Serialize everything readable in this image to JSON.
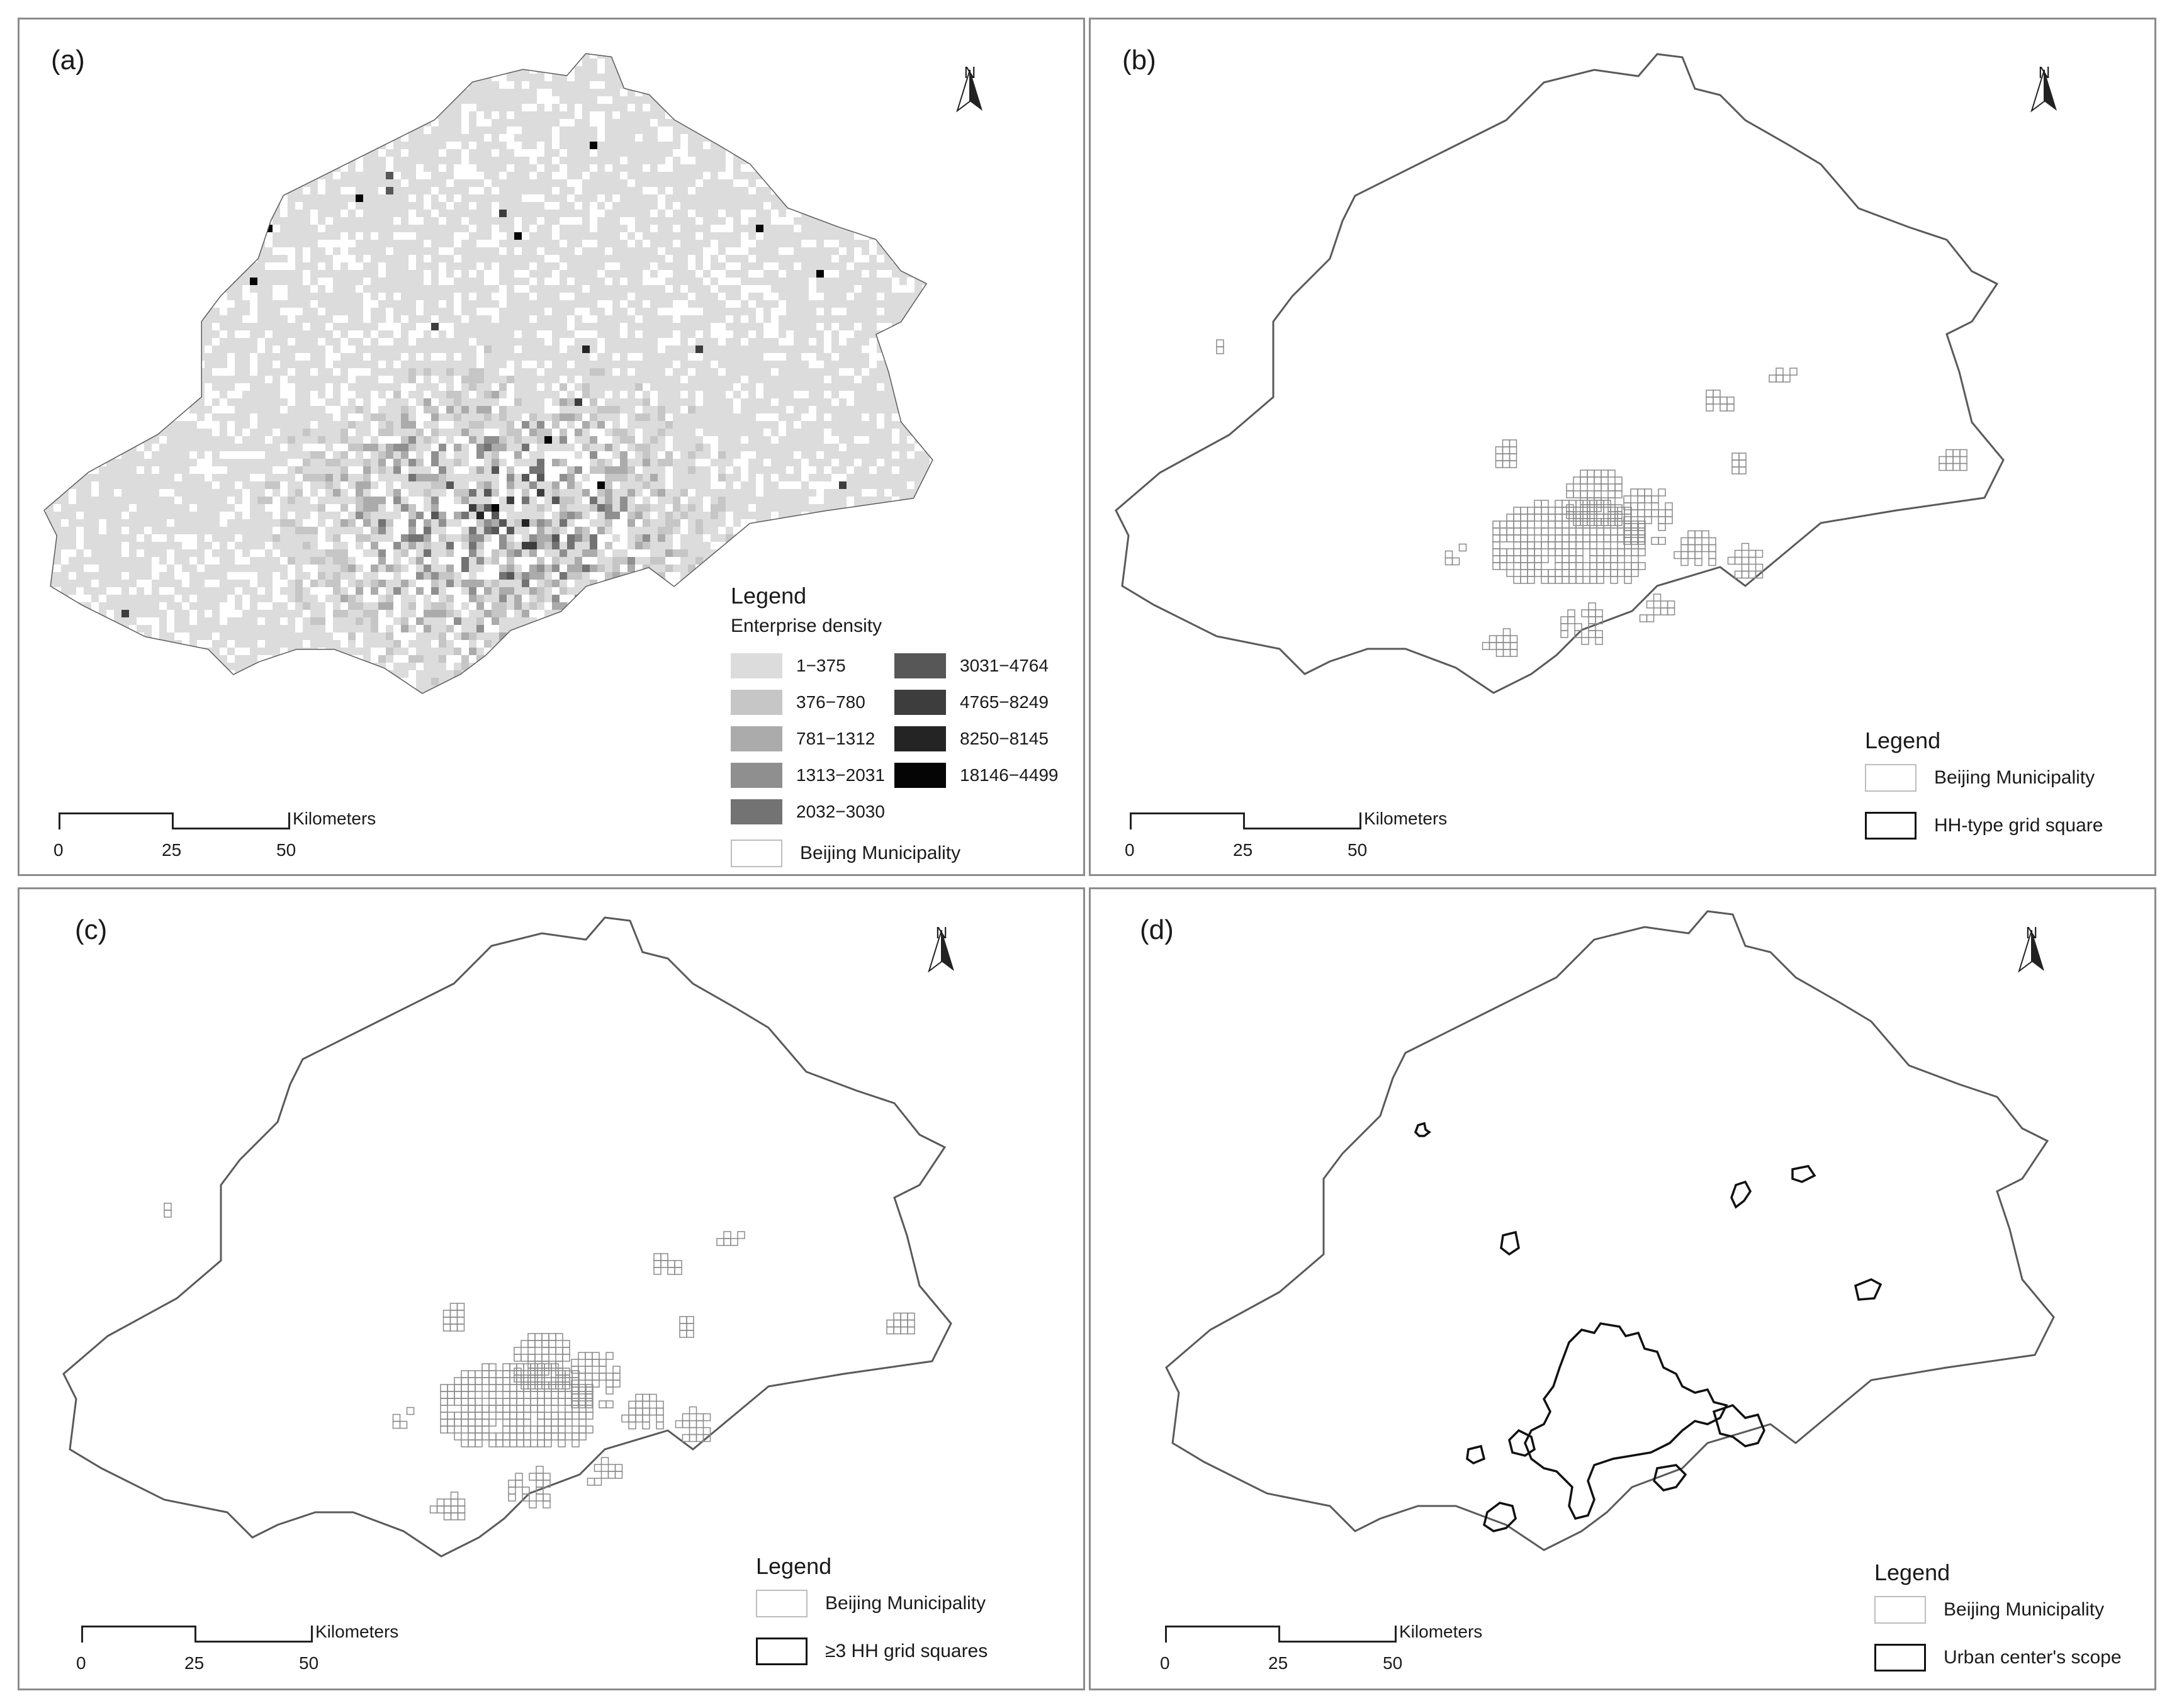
{
  "panels": [
    {
      "label": "(a)",
      "north": "N",
      "legend": {
        "title": "Legend",
        "subtitle": "Enterprise density",
        "density_classes": [
          {
            "range": "1−375",
            "color": "#dcdcdc"
          },
          {
            "range": "376−780",
            "color": "#c6c6c6"
          },
          {
            "range": "781−1312",
            "color": "#ababab"
          },
          {
            "range": "1313−2031",
            "color": "#8f8f8f"
          },
          {
            "range": "2032−3030",
            "color": "#737373"
          },
          {
            "range": "3031−4764",
            "color": "#575757"
          },
          {
            "range": "4765−8249",
            "color": "#3d3d3d"
          },
          {
            "range": "8250−8145",
            "color": "#242424"
          },
          {
            "range": "18146−4499",
            "color": "#050505"
          }
        ],
        "boundary_label": "Beijing Municipality"
      },
      "scale": {
        "unit": "Kilometers",
        "ticks": [
          "0",
          "25",
          "50"
        ]
      }
    },
    {
      "label": "(b)",
      "north": "N",
      "legend": {
        "title": "Legend",
        "items": [
          "Beijing Municipality",
          "HH-type grid square"
        ]
      },
      "scale": {
        "unit": "Kilometers",
        "ticks": [
          "0",
          "25",
          "50"
        ]
      }
    },
    {
      "label": "(c)",
      "north": "N",
      "legend": {
        "title": "Legend",
        "items": [
          "Beijing Municipality",
          "≥3 HH grid squares"
        ]
      },
      "scale": {
        "unit": "Kilometers",
        "ticks": [
          "0",
          "25",
          "50"
        ]
      }
    },
    {
      "label": "(d)",
      "north": "N",
      "legend": {
        "title": "Legend",
        "items": [
          "Beijing Municipality",
          "Urban center's scope"
        ]
      },
      "scale": {
        "unit": "Kilometers",
        "ticks": [
          "0",
          "25",
          "50"
        ]
      }
    }
  ],
  "colors": {
    "boundary": "#5a5a5a",
    "grid_outline": "#8a8a8a",
    "frame": "#8c8c8c"
  }
}
